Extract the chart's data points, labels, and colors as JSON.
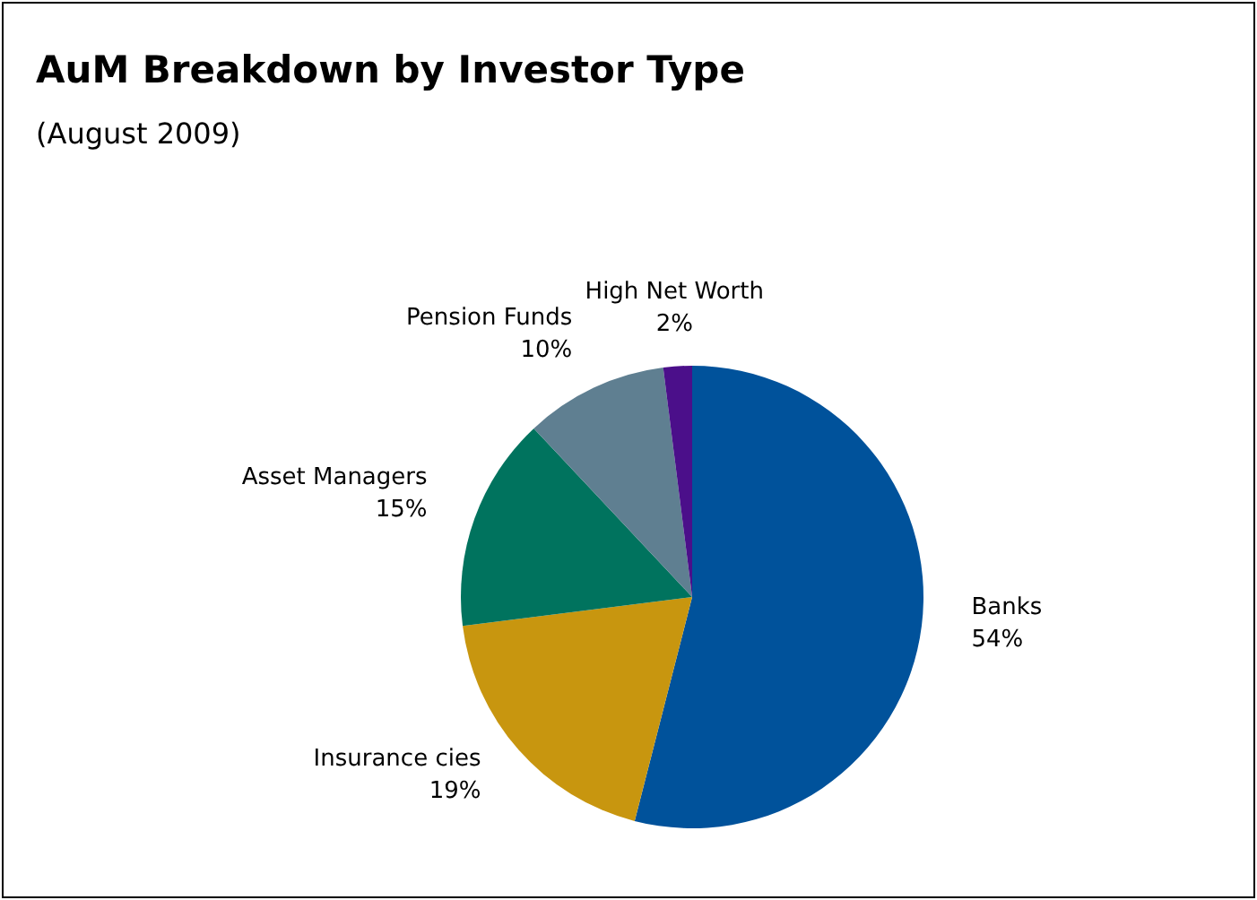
{
  "chart_data": {
    "type": "pie",
    "title": "AuM Breakdown by Investor Type",
    "subtitle": "(August 2009)",
    "categories": [
      "Banks",
      "Insurance cies",
      "Asset Managers",
      "Pension Funds",
      "High Net Worth"
    ],
    "values": [
      54,
      19,
      15,
      10,
      2
    ],
    "colors": [
      "#00529b",
      "#c8960f",
      "#00735e",
      "#5f7f91",
      "#4b0f8a"
    ],
    "value_labels": [
      "54%",
      "19%",
      "15%",
      "10%",
      "2%"
    ]
  }
}
